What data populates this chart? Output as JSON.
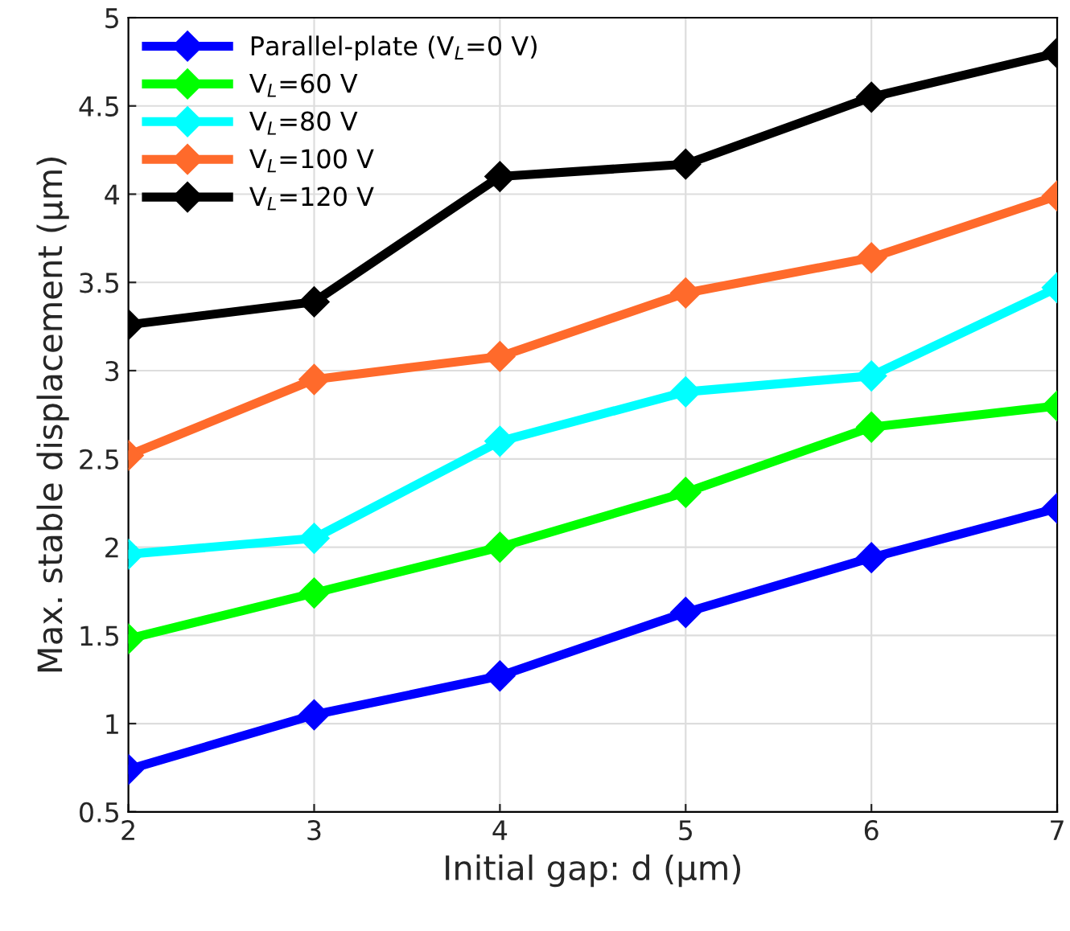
{
  "chart_data": {
    "type": "line",
    "xlabel": "Initial gap: d (μm)",
    "ylabel": "Max. stable displacement (μm)",
    "x": [
      2,
      3,
      4,
      5,
      6,
      7
    ],
    "series": [
      {
        "name": "Parallel-plate (V$_{L}$=0 V)",
        "color": "#0000ff",
        "values": [
          0.74,
          1.05,
          1.27,
          1.63,
          1.94,
          2.22
        ]
      },
      {
        "name": "V$_{L}$=60 V",
        "color": "#00ff00",
        "values": [
          1.48,
          1.74,
          2.0,
          2.31,
          2.68,
          2.8
        ]
      },
      {
        "name": "V$_{L}$=80 V",
        "color": "#00ffff",
        "values": [
          1.96,
          2.05,
          2.6,
          2.88,
          2.97,
          3.47
        ]
      },
      {
        "name": "V$_{L}$=100 V",
        "color": "#ff6a2b",
        "values": [
          2.52,
          2.95,
          3.08,
          3.44,
          3.64,
          3.99
        ]
      },
      {
        "name": "V$_{L}$=120 V",
        "color": "#000000",
        "values": [
          3.26,
          3.39,
          4.1,
          4.17,
          4.55,
          4.8
        ]
      }
    ],
    "xlim": [
      2,
      7
    ],
    "xticks": [
      2,
      3,
      4,
      5,
      6,
      7
    ],
    "ylim": [
      0.5,
      5
    ],
    "yticks": [
      0.5,
      1,
      1.5,
      2,
      2.5,
      3,
      3.5,
      4,
      4.5,
      5
    ],
    "grid": true,
    "legend": "top left",
    "marker": "diamond",
    "line_style": "solid"
  }
}
